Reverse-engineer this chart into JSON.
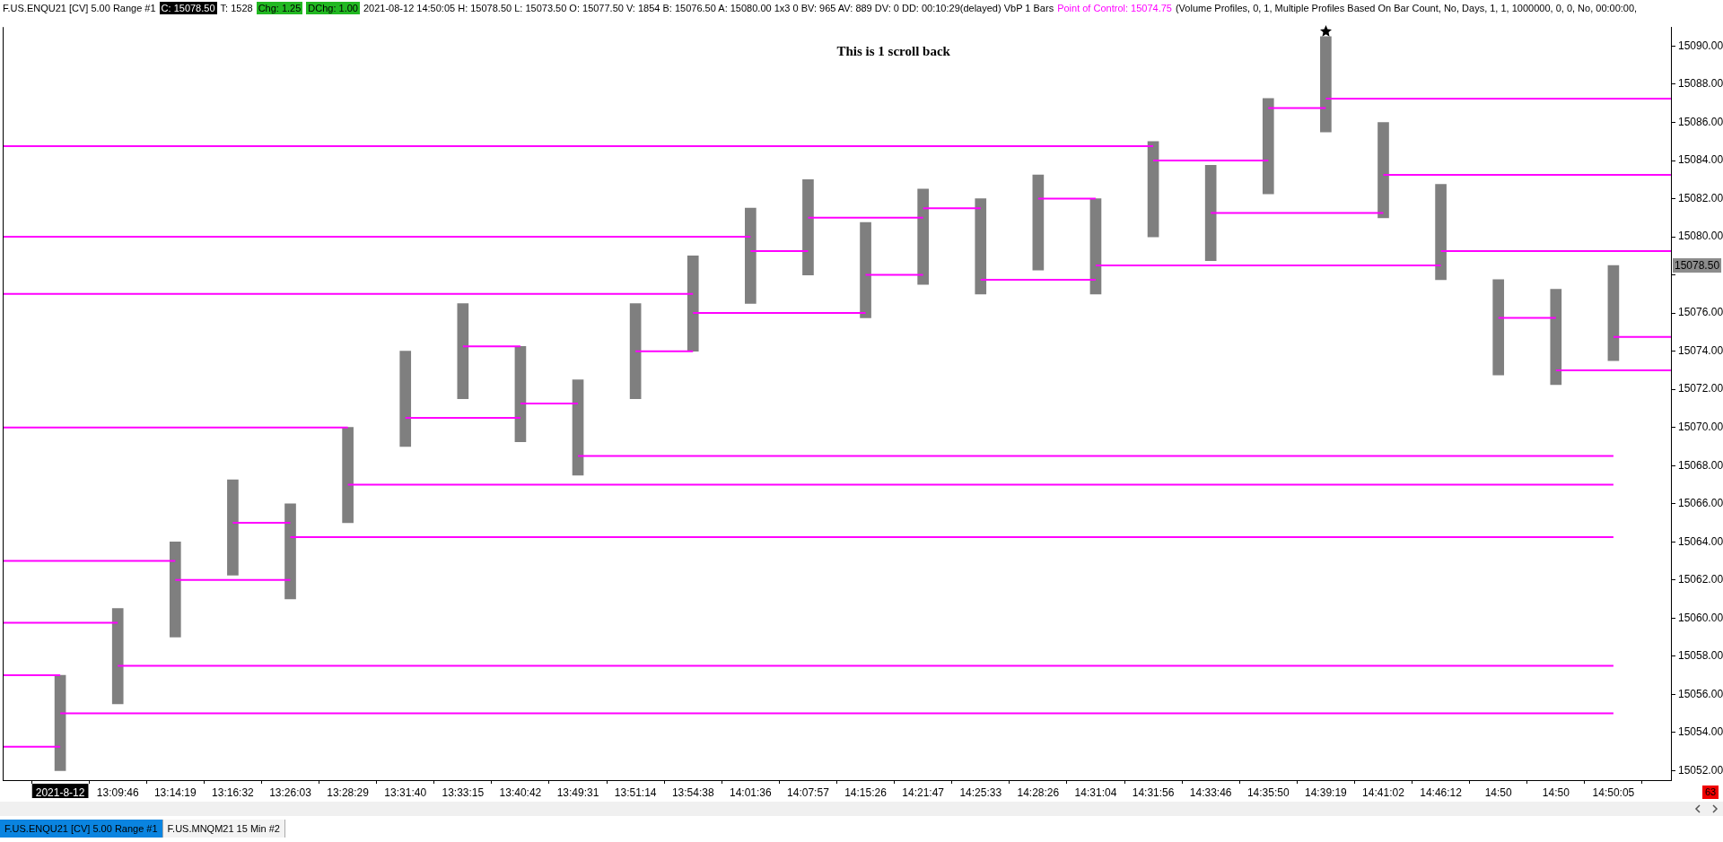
{
  "chart_data": {
    "type": "bar",
    "title": "This is 1 scroll back",
    "categories": [
      null,
      "2021-8-12",
      "13:09:46",
      "13:14:19",
      "13:16:32",
      "13:26:03",
      "13:28:29",
      "13:31:40",
      "13:33:15",
      "13:40:42",
      "13:49:31",
      "13:51:14",
      "13:54:38",
      "14:01:36",
      "14:07:57",
      "14:15:26",
      "14:21:47",
      "14:25:33",
      "14:28:26",
      "14:31:04",
      "14:31:56",
      "14:33:46",
      "14:35:50",
      "14:39:19",
      "14:41:02",
      "14:46:12",
      "14:50",
      "14:50",
      "14:50:05",
      null
    ],
    "ylim": [
      15051.5,
      15091
    ],
    "yticks": [
      {
        "value": 15052,
        "label": "15052.00"
      },
      {
        "value": 15054,
        "label": "15054.00"
      },
      {
        "value": 15056,
        "label": "15056.00"
      },
      {
        "value": 15058,
        "label": "15058.00"
      },
      {
        "value": 15060,
        "label": "15060.00"
      },
      {
        "value": 15062,
        "label": "15062.00"
      },
      {
        "value": 15064,
        "label": "15064.00"
      },
      {
        "value": 15066,
        "label": "15066.00"
      },
      {
        "value": 15068,
        "label": "15068.00"
      },
      {
        "value": 15070,
        "label": "15070.00"
      },
      {
        "value": 15072,
        "label": "15072.00"
      },
      {
        "value": 15074,
        "label": "15074.00"
      },
      {
        "value": 15076,
        "label": "15076.00"
      },
      {
        "value": 15078,
        "label": null
      },
      {
        "value": 15080,
        "label": "15080.00"
      },
      {
        "value": 15082,
        "label": "15082.00"
      },
      {
        "value": 15084,
        "label": "15084.00"
      },
      {
        "value": 15086,
        "label": "15086.00"
      },
      {
        "value": 15088,
        "label": "15088.00"
      },
      {
        "value": 15090,
        "label": "15090.00"
      }
    ],
    "annotations": [
      "F.US.ENQU21 [CV] 5.00 Range #1",
      "C: 15078.50",
      "T: 1528",
      "Chg: 1.25",
      "DChg: 1.00",
      "2021-08-12 14:50:05 H: 15078.50 L: 15073.50 O: 15077.50 V: 1854 B: 15076.50 A: 15080.00 1x3 0 BV: 965 AV: 889 DV: 0 DD: 00:10:29(delayed) VbP 1 Bars",
      "Point of Control: 15074.75",
      "(Volume Profiles, 0, 1, Multiple Profiles Based On Bar Count, No, Days, 1, 1, 1000000, 0, 0, No, 00:00:00,",
      "F.US.ENQU21 [CV] 5.00 Range #1",
      "F.US.MNQM21 15 Min #2",
      "63",
      "15078.50"
    ],
    "series": [
      {
        "type": "bar",
        "color": "#7f7f7f",
        "values": [
          null,
          5,
          5,
          5,
          5,
          5,
          5,
          5,
          5,
          5,
          5,
          5,
          5,
          5,
          5,
          5,
          5,
          5,
          5,
          5,
          5,
          5,
          5,
          5,
          5,
          5,
          5,
          5,
          5,
          null
        ],
        "base": [
          null,
          15052,
          15055.5,
          15059,
          15062.25,
          15061,
          15065,
          15069,
          15071.5,
          15069.25,
          15067.5,
          15071.5,
          15074,
          15076.5,
          15078,
          15075.75,
          15077.5,
          15077,
          15078.25,
          15077,
          15080,
          15078.75,
          15082.25,
          15085.5,
          15081,
          15077.75,
          15072.75,
          15072.25,
          15073.5,
          null
        ]
      },
      {
        "type": "line",
        "color": "#ff00ff",
        "values": [
          15084.75,
          15084.75,
          15084.75,
          15084.75,
          15084.75,
          15084.75,
          15084.75,
          15084.75,
          15084.75,
          15084.75,
          15084.75,
          15084.75,
          15084.75,
          15084.75,
          15084.75,
          15084.75,
          15084.75,
          15084.75,
          15084.75,
          15084.75,
          15084.75,
          null,
          null,
          null,
          null,
          null,
          null,
          null,
          null,
          null
        ]
      },
      {
        "type": "line",
        "color": "#ff00ff",
        "values": [
          15080,
          15080,
          15080,
          15080,
          15080,
          15080,
          15080,
          15080,
          15080,
          15080,
          15080,
          15080,
          15080,
          15080,
          null,
          null,
          null,
          null,
          null,
          null,
          null,
          null,
          null,
          null,
          null,
          null,
          null,
          null,
          null,
          null
        ]
      },
      {
        "type": "line",
        "color": "#ff00ff",
        "values": [
          15077,
          15077,
          15077,
          15077,
          15077,
          15077,
          15077,
          15077,
          15077,
          15077,
          15077,
          15077,
          15077,
          null,
          null,
          null,
          null,
          null,
          null,
          null,
          null,
          null,
          null,
          null,
          null,
          null,
          null,
          null,
          null,
          null
        ]
      },
      {
        "type": "line",
        "color": "#ff00ff",
        "values": [
          15070,
          15070,
          15070,
          15070,
          15070,
          15070,
          15070,
          null,
          null,
          null,
          null,
          null,
          null,
          null,
          null,
          null,
          null,
          null,
          null,
          null,
          null,
          null,
          null,
          null,
          null,
          null,
          null,
          null,
          null,
          null
        ]
      },
      {
        "type": "line",
        "color": "#ff00ff",
        "values": [
          15063,
          15063,
          15063,
          15063,
          null,
          null,
          null,
          null,
          null,
          null,
          null,
          null,
          null,
          null,
          null,
          null,
          null,
          null,
          null,
          null,
          null,
          null,
          null,
          null,
          null,
          null,
          null,
          null,
          null,
          null
        ]
      },
      {
        "type": "line",
        "color": "#ff00ff",
        "values": [
          15059.75,
          15059.75,
          15059.75,
          null,
          null,
          null,
          null,
          null,
          null,
          null,
          null,
          null,
          null,
          null,
          null,
          null,
          null,
          null,
          null,
          null,
          null,
          null,
          null,
          null,
          null,
          null,
          null,
          null,
          null,
          null
        ]
      },
      {
        "type": "line",
        "color": "#ff00ff",
        "values": [
          15057,
          15057,
          null,
          null,
          null,
          null,
          null,
          null,
          null,
          null,
          null,
          null,
          null,
          null,
          null,
          null,
          null,
          null,
          null,
          null,
          null,
          null,
          null,
          null,
          null,
          null,
          null,
          null,
          null,
          null
        ]
      },
      {
        "type": "line",
        "color": "#ff00ff",
        "values": [
          15053.25,
          15053.25,
          null,
          null,
          null,
          null,
          null,
          null,
          null,
          null,
          null,
          null,
          null,
          null,
          null,
          null,
          null,
          null,
          null,
          null,
          null,
          null,
          null,
          null,
          null,
          null,
          null,
          null,
          null,
          null
        ]
      },
      {
        "type": "line",
        "color": "#ff00ff",
        "values": [
          null,
          15055,
          15055,
          15055,
          15055,
          15055,
          15055,
          15055,
          15055,
          15055,
          15055,
          15055,
          15055,
          15055,
          15055,
          15055,
          15055,
          15055,
          15055,
          15055,
          15055,
          15055,
          15055,
          15055,
          15055,
          15055,
          15055,
          15055,
          15055,
          null
        ]
      },
      {
        "type": "line",
        "color": "#ff00ff",
        "values": [
          null,
          null,
          15057.5,
          15057.5,
          15057.5,
          15057.5,
          15057.5,
          15057.5,
          15057.5,
          15057.5,
          15057.5,
          15057.5,
          15057.5,
          15057.5,
          15057.5,
          15057.5,
          15057.5,
          15057.5,
          15057.5,
          15057.5,
          15057.5,
          15057.5,
          15057.5,
          15057.5,
          15057.5,
          15057.5,
          15057.5,
          15057.5,
          15057.5,
          null
        ]
      },
      {
        "type": "line",
        "color": "#ff00ff",
        "values": [
          null,
          null,
          null,
          15062,
          15062,
          15062,
          null,
          null,
          null,
          null,
          null,
          null,
          null,
          null,
          null,
          null,
          null,
          null,
          null,
          null,
          null,
          null,
          null,
          null,
          null,
          null,
          null,
          null,
          null,
          null
        ]
      },
      {
        "type": "line",
        "color": "#ff00ff",
        "values": [
          null,
          null,
          null,
          null,
          15065,
          15065,
          null,
          null,
          null,
          null,
          null,
          null,
          null,
          null,
          null,
          null,
          null,
          null,
          null,
          null,
          null,
          null,
          null,
          null,
          null,
          null,
          null,
          null,
          null,
          null
        ]
      },
      {
        "type": "line",
        "color": "#ff00ff",
        "values": [
          null,
          null,
          null,
          null,
          null,
          15064.25,
          15064.25,
          15064.25,
          15064.25,
          15064.25,
          15064.25,
          15064.25,
          15064.25,
          15064.25,
          15064.25,
          15064.25,
          15064.25,
          15064.25,
          15064.25,
          15064.25,
          15064.25,
          15064.25,
          15064.25,
          15064.25,
          15064.25,
          15064.25,
          15064.25,
          15064.25,
          15064.25,
          null
        ]
      },
      {
        "type": "line",
        "color": "#ff00ff",
        "values": [
          null,
          null,
          null,
          null,
          null,
          null,
          15067,
          15067,
          15067,
          15067,
          15067,
          15067,
          15067,
          15067,
          15067,
          15067,
          15067,
          15067,
          15067,
          15067,
          15067,
          15067,
          15067,
          15067,
          15067,
          15067,
          15067,
          15067,
          15067,
          null
        ]
      },
      {
        "type": "line",
        "color": "#ff00ff",
        "values": [
          null,
          null,
          null,
          null,
          null,
          null,
          null,
          15070.5,
          15070.5,
          15070.5,
          null,
          null,
          null,
          null,
          null,
          null,
          null,
          null,
          null,
          null,
          null,
          null,
          null,
          null,
          null,
          null,
          null,
          null,
          null,
          null
        ]
      },
      {
        "type": "line",
        "color": "#ff00ff",
        "values": [
          null,
          null,
          null,
          null,
          null,
          null,
          null,
          null,
          15074.25,
          15074.25,
          null,
          null,
          null,
          null,
          null,
          null,
          null,
          null,
          null,
          null,
          null,
          null,
          null,
          null,
          null,
          null,
          null,
          null,
          null,
          null
        ]
      },
      {
        "type": "line",
        "color": "#ff00ff",
        "values": [
          null,
          null,
          null,
          null,
          null,
          null,
          null,
          null,
          null,
          15071.25,
          15071.25,
          null,
          null,
          null,
          null,
          null,
          null,
          null,
          null,
          null,
          null,
          null,
          null,
          null,
          null,
          null,
          null,
          null,
          null,
          null
        ]
      },
      {
        "type": "line",
        "color": "#ff00ff",
        "values": [
          null,
          null,
          null,
          null,
          null,
          null,
          null,
          null,
          null,
          null,
          15068.5,
          15068.5,
          15068.5,
          15068.5,
          15068.5,
          15068.5,
          15068.5,
          15068.5,
          15068.5,
          15068.5,
          15068.5,
          15068.5,
          15068.5,
          15068.5,
          15068.5,
          15068.5,
          15068.5,
          15068.5,
          15068.5,
          null
        ]
      },
      {
        "type": "line",
        "color": "#ff00ff",
        "values": [
          null,
          null,
          null,
          null,
          null,
          null,
          null,
          null,
          null,
          null,
          null,
          15074,
          15074,
          null,
          null,
          null,
          null,
          null,
          null,
          null,
          null,
          null,
          null,
          null,
          null,
          null,
          null,
          null,
          null,
          null
        ]
      },
      {
        "type": "line",
        "color": "#ff00ff",
        "values": [
          null,
          null,
          null,
          null,
          null,
          null,
          null,
          null,
          null,
          null,
          null,
          null,
          15076,
          15076,
          15076,
          15076,
          null,
          null,
          null,
          null,
          null,
          null,
          null,
          null,
          null,
          null,
          null,
          null,
          null,
          null
        ]
      },
      {
        "type": "line",
        "color": "#ff00ff",
        "values": [
          null,
          null,
          null,
          null,
          null,
          null,
          null,
          null,
          null,
          null,
          null,
          null,
          null,
          15079.25,
          15079.25,
          null,
          null,
          null,
          null,
          null,
          null,
          null,
          null,
          null,
          null,
          null,
          null,
          null,
          null,
          null
        ]
      },
      {
        "type": "line",
        "color": "#ff00ff",
        "values": [
          null,
          null,
          null,
          null,
          null,
          null,
          null,
          null,
          null,
          null,
          null,
          null,
          null,
          null,
          15081,
          15081,
          15081,
          null,
          null,
          null,
          null,
          null,
          null,
          null,
          null,
          null,
          null,
          null,
          null,
          null
        ]
      },
      {
        "type": "line",
        "color": "#ff00ff",
        "values": [
          null,
          null,
          null,
          null,
          null,
          null,
          null,
          null,
          null,
          null,
          null,
          null,
          null,
          null,
          null,
          15078,
          15078,
          null,
          null,
          null,
          null,
          null,
          null,
          null,
          null,
          null,
          null,
          null,
          null,
          null
        ]
      },
      {
        "type": "line",
        "color": "#ff00ff",
        "values": [
          null,
          null,
          null,
          null,
          null,
          null,
          null,
          null,
          null,
          null,
          null,
          null,
          null,
          null,
          null,
          null,
          15081.5,
          15081.5,
          null,
          null,
          null,
          null,
          null,
          null,
          null,
          null,
          null,
          null,
          null,
          null
        ]
      },
      {
        "type": "line",
        "color": "#ff00ff",
        "values": [
          null,
          null,
          null,
          null,
          null,
          null,
          null,
          null,
          null,
          null,
          null,
          null,
          null,
          null,
          null,
          null,
          null,
          15077.75,
          15077.75,
          15077.75,
          null,
          null,
          null,
          null,
          null,
          null,
          null,
          null,
          null,
          null
        ]
      },
      {
        "type": "line",
        "color": "#ff00ff",
        "values": [
          null,
          null,
          null,
          null,
          null,
          null,
          null,
          null,
          null,
          null,
          null,
          null,
          null,
          null,
          null,
          null,
          null,
          null,
          15082,
          15082,
          null,
          null,
          null,
          null,
          null,
          null,
          null,
          null,
          null,
          null
        ]
      },
      {
        "type": "line",
        "color": "#ff00ff",
        "values": [
          null,
          null,
          null,
          null,
          null,
          null,
          null,
          null,
          null,
          null,
          null,
          null,
          null,
          null,
          null,
          null,
          null,
          null,
          null,
          15078.5,
          15078.5,
          15078.5,
          15078.5,
          15078.5,
          15078.5,
          15078.5,
          null,
          null,
          null,
          null
        ]
      },
      {
        "type": "line",
        "color": "#ff00ff",
        "values": [
          null,
          null,
          null,
          null,
          null,
          null,
          null,
          null,
          null,
          null,
          null,
          null,
          null,
          null,
          null,
          null,
          null,
          null,
          null,
          null,
          15084,
          15084,
          15084,
          null,
          null,
          null,
          null,
          null,
          null,
          null
        ]
      },
      {
        "type": "line",
        "color": "#ff00ff",
        "values": [
          null,
          null,
          null,
          null,
          null,
          null,
          null,
          null,
          null,
          null,
          null,
          null,
          null,
          null,
          null,
          null,
          null,
          null,
          null,
          null,
          null,
          15081.25,
          15081.25,
          15081.25,
          15081.25,
          null,
          null,
          null,
          null,
          null
        ]
      },
      {
        "type": "line",
        "color": "#ff00ff",
        "values": [
          null,
          null,
          null,
          null,
          null,
          null,
          null,
          null,
          null,
          null,
          null,
          null,
          null,
          null,
          null,
          null,
          null,
          null,
          null,
          null,
          null,
          null,
          15086.75,
          15086.75,
          null,
          null,
          null,
          null,
          null,
          null
        ]
      },
      {
        "type": "line",
        "color": "#ff00ff",
        "values": [
          null,
          null,
          null,
          null,
          null,
          null,
          null,
          null,
          null,
          null,
          null,
          null,
          null,
          null,
          null,
          null,
          null,
          null,
          null,
          null,
          null,
          null,
          null,
          15087.25,
          15087.25,
          15087.25,
          15087.25,
          15087.25,
          15087.25,
          15087.25
        ]
      },
      {
        "type": "line",
        "color": "#ff00ff",
        "values": [
          null,
          null,
          null,
          null,
          null,
          null,
          null,
          null,
          null,
          null,
          null,
          null,
          null,
          null,
          null,
          null,
          null,
          null,
          null,
          null,
          null,
          null,
          null,
          null,
          15083.25,
          15083.25,
          15083.25,
          15083.25,
          15083.25,
          15083.25
        ]
      },
      {
        "type": "line",
        "color": "#ff00ff",
        "values": [
          null,
          null,
          null,
          null,
          null,
          null,
          null,
          null,
          null,
          null,
          null,
          null,
          null,
          null,
          null,
          null,
          null,
          null,
          null,
          null,
          null,
          null,
          null,
          null,
          null,
          15079.25,
          15079.25,
          15079.25,
          15079.25,
          15079.25
        ]
      },
      {
        "type": "line",
        "color": "#ff00ff",
        "values": [
          null,
          null,
          null,
          null,
          null,
          null,
          null,
          null,
          null,
          null,
          null,
          null,
          null,
          null,
          null,
          null,
          null,
          null,
          null,
          null,
          null,
          null,
          null,
          null,
          null,
          null,
          15075.75,
          15075.75,
          null,
          null
        ]
      },
      {
        "type": "line",
        "color": "#ff00ff",
        "values": [
          null,
          null,
          null,
          null,
          null,
          null,
          null,
          null,
          null,
          null,
          null,
          null,
          null,
          null,
          null,
          null,
          null,
          null,
          null,
          null,
          null,
          null,
          null,
          null,
          null,
          null,
          null,
          15073,
          15073,
          15073
        ]
      },
      {
        "type": "line",
        "color": "#ff00ff",
        "values": [
          null,
          null,
          null,
          null,
          null,
          null,
          null,
          null,
          null,
          null,
          null,
          null,
          null,
          null,
          null,
          null,
          null,
          null,
          null,
          null,
          null,
          null,
          null,
          null,
          null,
          null,
          null,
          null,
          15074.75,
          15074.75
        ]
      }
    ]
  }
}
